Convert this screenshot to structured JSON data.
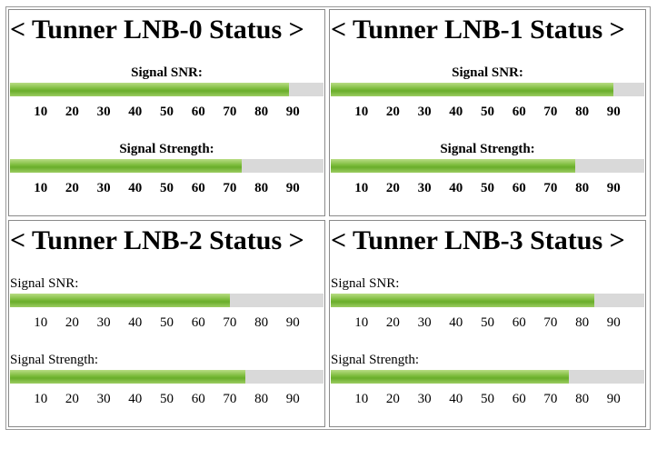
{
  "tuners": [
    {
      "title": "< Tunner LNB-0 Status >",
      "snr_label": "Signal SNR:",
      "strength_label": "Signal Strength:",
      "snr_percent": 89,
      "strength_percent": 74
    },
    {
      "title": "< Tunner LNB-1 Status >",
      "snr_label": "Signal SNR:",
      "strength_label": "Signal Strength:",
      "snr_percent": 90,
      "strength_percent": 78
    },
    {
      "title": "< Tunner LNB-2 Status >",
      "snr_label": "Signal SNR:",
      "strength_label": "Signal Strength:",
      "snr_percent": 70,
      "strength_percent": 75
    },
    {
      "title": "< Tunner LNB-3 Status >",
      "snr_label": "Signal SNR:",
      "strength_label": "Signal Strength:",
      "snr_percent": 84,
      "strength_percent": 76
    }
  ],
  "scale_ticks": [
    "10",
    "20",
    "30",
    "40",
    "50",
    "60",
    "70",
    "80",
    "90"
  ],
  "colors": {
    "bar_fill": "#7bbb3a",
    "bar_track": "#d9d9d9"
  }
}
